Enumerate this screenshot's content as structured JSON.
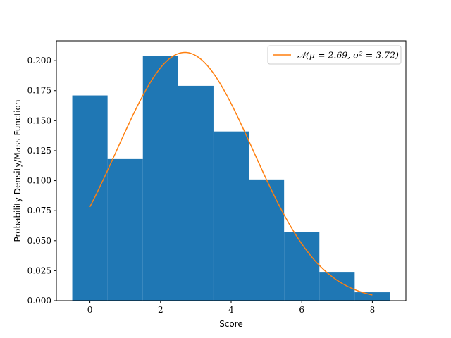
{
  "chart_data": {
    "type": "bar",
    "xlabel": "Score",
    "ylabel": "Probability Density/Mass Function",
    "xlim": [
      -0.95,
      8.95
    ],
    "ylim": [
      0,
      0.2165
    ],
    "xticks": [
      0,
      2,
      4,
      6,
      8
    ],
    "xtick_labels": [
      "0",
      "2",
      "4",
      "6",
      "8"
    ],
    "yticks": [
      0,
      0.025,
      0.05,
      0.075,
      0.1,
      0.125,
      0.15,
      0.175,
      0.2
    ],
    "ytick_labels": [
      "0.000",
      "0.025",
      "0.050",
      "0.075",
      "0.100",
      "0.125",
      "0.150",
      "0.175",
      "0.200"
    ],
    "categories": [
      0,
      1,
      2,
      3,
      4,
      5,
      6,
      7,
      8
    ],
    "values": [
      0.171,
      0.118,
      0.204,
      0.179,
      0.141,
      0.101,
      0.057,
      0.024,
      0.007
    ],
    "bar_width": 1,
    "bar_color": "#1f77b4",
    "curve": {
      "name": "𝒩(μ = 2.69, σ² = 3.72)",
      "mu": 2.69,
      "sigma2": 3.72,
      "x_range": [
        0,
        8
      ],
      "color": "#ff7f0e"
    },
    "legend_placement": "top-right",
    "grid": false
  }
}
